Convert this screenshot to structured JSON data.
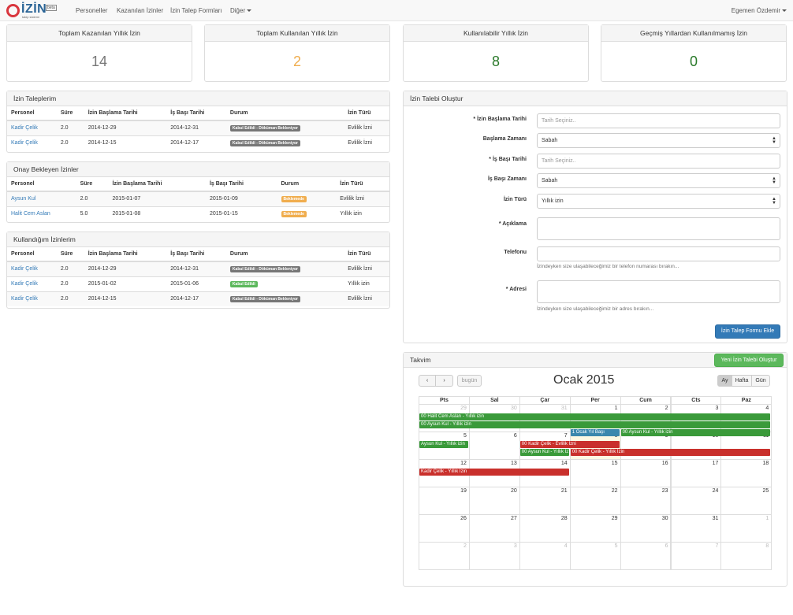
{
  "nav": {
    "brand": "İZİN",
    "brand_badge": "beta",
    "brand_sub": "takip sistemi",
    "links": [
      "Personeller",
      "Kazanılan İzinler",
      "İzin Talep Formları",
      "Diğer"
    ],
    "user": "Egemen Özdemir"
  },
  "stats": [
    {
      "title": "Toplam Kazanılan Yıllık İzin",
      "value": "14",
      "color": "#777777"
    },
    {
      "title": "Toplam Kullanılan Yıllık İzin",
      "value": "2",
      "color": "#f0ad4e"
    },
    {
      "title": "Kullanılabilir Yıllık İzin",
      "value": "8",
      "color": "#2b7a2b"
    },
    {
      "title": "Geçmiş Yıllardan Kullanılmamış İzin",
      "value": "0",
      "color": "#2b7a2b"
    }
  ],
  "my_requests": {
    "title": "İzin Taleplerim",
    "headers": [
      "Personel",
      "Süre",
      "İzin Başlama Tarihi",
      "İş Başı Tarihi",
      "Durum",
      "İzin Türü"
    ],
    "rows": [
      {
        "person": "Kadir Çelik",
        "duration": "2.0",
        "start": "2014-12-29",
        "return": "2014-12-31",
        "status": "Kabul Edildi - Döküman Bekleniyor",
        "status_type": "default",
        "type": "Evlilik İzni"
      },
      {
        "person": "Kadir Çelik",
        "duration": "2.0",
        "start": "2014-12-15",
        "return": "2014-12-17",
        "status": "Kabul Edildi - Döküman Bekleniyor",
        "status_type": "default",
        "type": "Evlilik İzni"
      }
    ]
  },
  "pending": {
    "title": "Onay Bekleyen İzinler",
    "headers": [
      "Personel",
      "Süre",
      "İzin Başlama Tarihi",
      "İş Başı Tarihi",
      "Durum",
      "İzin Türü"
    ],
    "rows": [
      {
        "person": "Aysun Kul",
        "duration": "2.0",
        "start": "2015-01-07",
        "return": "2015-01-09",
        "status": "Beklemede",
        "status_type": "warning",
        "type": "Evlilik İzni"
      },
      {
        "person": "Halit Cem Aslan",
        "duration": "5.0",
        "start": "2015-01-08",
        "return": "2015-01-15",
        "status": "Beklemede",
        "status_type": "warning",
        "type": "Yıllık izin"
      }
    ]
  },
  "used": {
    "title": "Kullandığım İzinlerim",
    "headers": [
      "Personel",
      "Süre",
      "İzin Başlama Tarihi",
      "İş Başı Tarihi",
      "Durum",
      "İzin Türü"
    ],
    "rows": [
      {
        "person": "Kadir Çelik",
        "duration": "2.0",
        "start": "2014-12-29",
        "return": "2014-12-31",
        "status": "Kabul Edildi - Döküman Bekleniyor",
        "status_type": "default",
        "type": "Evlilik İzni"
      },
      {
        "person": "Kadir Çelik",
        "duration": "2.0",
        "start": "2015-01-02",
        "return": "2015-01-06",
        "status": "Kabul Edildi",
        "status_type": "success",
        "type": "Yıllık izin"
      },
      {
        "person": "Kadir Çelik",
        "duration": "2.0",
        "start": "2014-12-15",
        "return": "2014-12-17",
        "status": "Kabul Edildi - Döküman Bekleniyor",
        "status_type": "default",
        "type": "Evlilik İzni"
      }
    ]
  },
  "form": {
    "title": "İzin Talebi Oluştur",
    "start_label": "İzin Başlama Tarihi",
    "start_placeholder": "Tarih Seçiniz..",
    "start_time_label": "Başlama Zamanı",
    "start_time_value": "Sabah",
    "return_label": "İş Başı Tarihi",
    "return_placeholder": "Tarih Seçiniz..",
    "return_time_label": "İş Başı Zamanı",
    "return_time_value": "Sabah",
    "type_label": "İzin Türü",
    "type_value": "Yıllık izin",
    "desc_label": "Açıklama",
    "phone_label": "Telefonu",
    "phone_help": "İzindeyken size ulaşabileceğimiz bir telefon numarası bırakın...",
    "address_label": "Adresi",
    "address_help": "İzindeyken size ulaşabileceğimiz bir adres bırakın...",
    "submit": "İzin Talep Formu Ekle",
    "required_mark": "*"
  },
  "calendar": {
    "panel_title": "Takvim",
    "new_button": "Yeni İzin Talebi Oluştur",
    "title": "Ocak 2015",
    "today_btn": "bugün",
    "prev": "‹",
    "next": "›",
    "views": [
      "Ay",
      "Hafta",
      "Gün"
    ],
    "day_names": [
      "Pts",
      "Sal",
      "Çar",
      "Per",
      "Cum",
      "Cts",
      "Paz"
    ],
    "weeks": [
      [
        "29",
        "30",
        "31",
        "1",
        "2",
        "3",
        "4"
      ],
      [
        "5",
        "6",
        "7",
        "8",
        "9",
        "10",
        "11"
      ],
      [
        "12",
        "13",
        "14",
        "15",
        "16",
        "17",
        "18"
      ],
      [
        "19",
        "20",
        "21",
        "22",
        "23",
        "24",
        "25"
      ],
      [
        "26",
        "27",
        "28",
        "29",
        "30",
        "31",
        "1"
      ],
      [
        "2",
        "3",
        "4",
        "5",
        "6",
        "7",
        "8"
      ]
    ],
    "events": [
      {
        "label": "00 Halit Cem Aslan - Yıllık izin",
        "color": "g",
        "week": 0,
        "start": 0,
        "span": 7,
        "slot": 0
      },
      {
        "label": "00 Aysun Kul - Yıllık izin",
        "color": "g",
        "week": 0,
        "start": 0,
        "span": 7,
        "slot": 1
      },
      {
        "label": "1 Ocak Yıl Başı",
        "color": "b",
        "week": 0,
        "start": 3,
        "span": 1,
        "slot": 2
      },
      {
        "label": "00 Aysun Kul - Yıllık izin",
        "color": "g",
        "week": 0,
        "start": 4,
        "span": 3,
        "slot": 2
      },
      {
        "label": "Aysun Kul - Yıllık izin",
        "color": "g",
        "week": 1,
        "start": 0,
        "span": 1,
        "slot": 0
      },
      {
        "label": "00 Kadir Çelik - Evlilik İzni",
        "color": "r",
        "week": 1,
        "start": 2,
        "span": 2,
        "slot": 0
      },
      {
        "label": "00 Aysun Kul - Yıllık İz",
        "color": "g",
        "week": 1,
        "start": 2,
        "span": 1,
        "slot": 1
      },
      {
        "label": "00 Kadir Çelik - Yıllık İzin",
        "color": "r",
        "week": 1,
        "start": 3,
        "span": 4,
        "slot": 1
      },
      {
        "label": "Kadir Çelik - Yıllık İzin",
        "color": "r",
        "week": 2,
        "start": 0,
        "span": 3,
        "slot": 0
      }
    ]
  }
}
